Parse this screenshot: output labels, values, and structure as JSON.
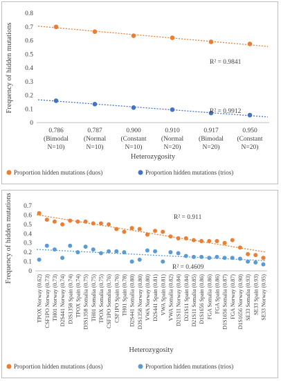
{
  "chart_data": [
    {
      "type": "scatter",
      "ylabel": "Frequency of hidden mutations",
      "xlabel": "Heterozygosity",
      "ylim": [
        0,
        0.8
      ],
      "yticks": [
        "0",
        "0.1",
        "0.2",
        "0.3",
        "0.4",
        "0.5",
        "0.6",
        "0.7",
        "0.8"
      ],
      "categories": [
        [
          "0.786",
          "(Bimodal",
          "N=10)"
        ],
        [
          "0.787",
          "(Normal",
          "N=10)"
        ],
        [
          "0.900",
          "(Constant",
          "N=10)"
        ],
        [
          "0.910",
          "(Normal",
          "N=20)"
        ],
        [
          "0.917",
          "(Bimodal",
          "N=20)"
        ],
        [
          "0.950",
          "(Constant",
          "N=20)"
        ]
      ],
      "series": [
        {
          "name": "Proportion hidden mutations (duos)",
          "color": "#ed7d31",
          "values": [
            0.7,
            0.665,
            0.635,
            0.62,
            0.59,
            0.575
          ],
          "trendline": "dotted",
          "r2": "R² = 0.9841"
        },
        {
          "name": "Proportion hidden mutations (trios)",
          "color": "#4472c4",
          "values": [
            0.16,
            0.135,
            0.11,
            0.095,
            0.07,
            0.055
          ],
          "trendline": "dotted",
          "r2": "R² = 0.9912"
        }
      ],
      "legend": "bottom",
      "grid": false
    },
    {
      "type": "scatter",
      "ylabel": "Frequency of hidden mutations",
      "xlabel": "Heterozygosity",
      "ylim": [
        0,
        0.7
      ],
      "yticks": [
        "0",
        "0.1",
        "0.2",
        "0.3",
        "0.4",
        "0.5",
        "0.6",
        "0.7"
      ],
      "categories": [
        "TPOX Norway (0.62)",
        "CSF1PO Norway (0.73)",
        "TH01 Norway (0.73)",
        "D2S441 Norway (0.74)",
        "D3S1358 Spain (0.74)",
        "TPOX Spain (0.74)",
        "D3S1358 Somalia (0.75)",
        "TH01 Somalia (0.75)",
        "TPOX Somalia (0.75)",
        "CSF1PO Somalia (0.76)",
        "CSF1PO Spain (0.76)",
        "TH01 Spain (0.78)",
        "D2S441 Somalia (0.80)",
        "D3S1358 Norway (0.80)",
        "VWA Norway (0.80)",
        "D2S441 Spain (0.81)",
        "VWA Spain (0.81)",
        "VWA Somalia (0.82)",
        "D21S11 Norway (0.84)",
        "D21S11 Spain (0.84)",
        "D21S11 Somalia (0.85)",
        "D1S1656 Spain (0.86)",
        "FGA Somalia (0.86)",
        "FGA Spain (0.86)",
        "D1S1656 Somalia (0.87)",
        "FGA Norway (0.87)",
        "D1S1656 Norway (0.90)",
        "SE33 Somalia (0.93)",
        "SE33 Spain (0.93)",
        "SE33 Norway (0.95)"
      ],
      "series": [
        {
          "name": "Proportion hidden mutations (duos)",
          "color": "#ed7d31",
          "values": [
            0.62,
            0.55,
            0.53,
            0.5,
            0.54,
            0.53,
            0.53,
            0.51,
            0.51,
            0.5,
            0.45,
            0.42,
            0.46,
            0.45,
            0.39,
            0.43,
            0.42,
            0.37,
            0.35,
            0.35,
            0.33,
            0.32,
            0.32,
            0.32,
            0.3,
            0.33,
            0.25,
            0.18,
            0.17,
            0.14
          ],
          "trendline": "dotted",
          "r2": "R² = 0.911"
        },
        {
          "name": "Proportion hidden mutations (trios)",
          "color": "#5b9bd5",
          "values": [
            0.12,
            0.27,
            0.23,
            0.14,
            0.27,
            0.2,
            0.26,
            0.23,
            0.19,
            0.21,
            0.21,
            0.2,
            0.1,
            0.12,
            0.22,
            0.21,
            0.1,
            0.2,
            0.19,
            0.16,
            0.15,
            0.15,
            0.14,
            0.15,
            0.14,
            0.14,
            0.13,
            0.1,
            0.09,
            0.07
          ],
          "trendline": "dotted",
          "r2": "R² = 0.4609"
        }
      ],
      "legend": "bottom",
      "grid": false
    }
  ]
}
